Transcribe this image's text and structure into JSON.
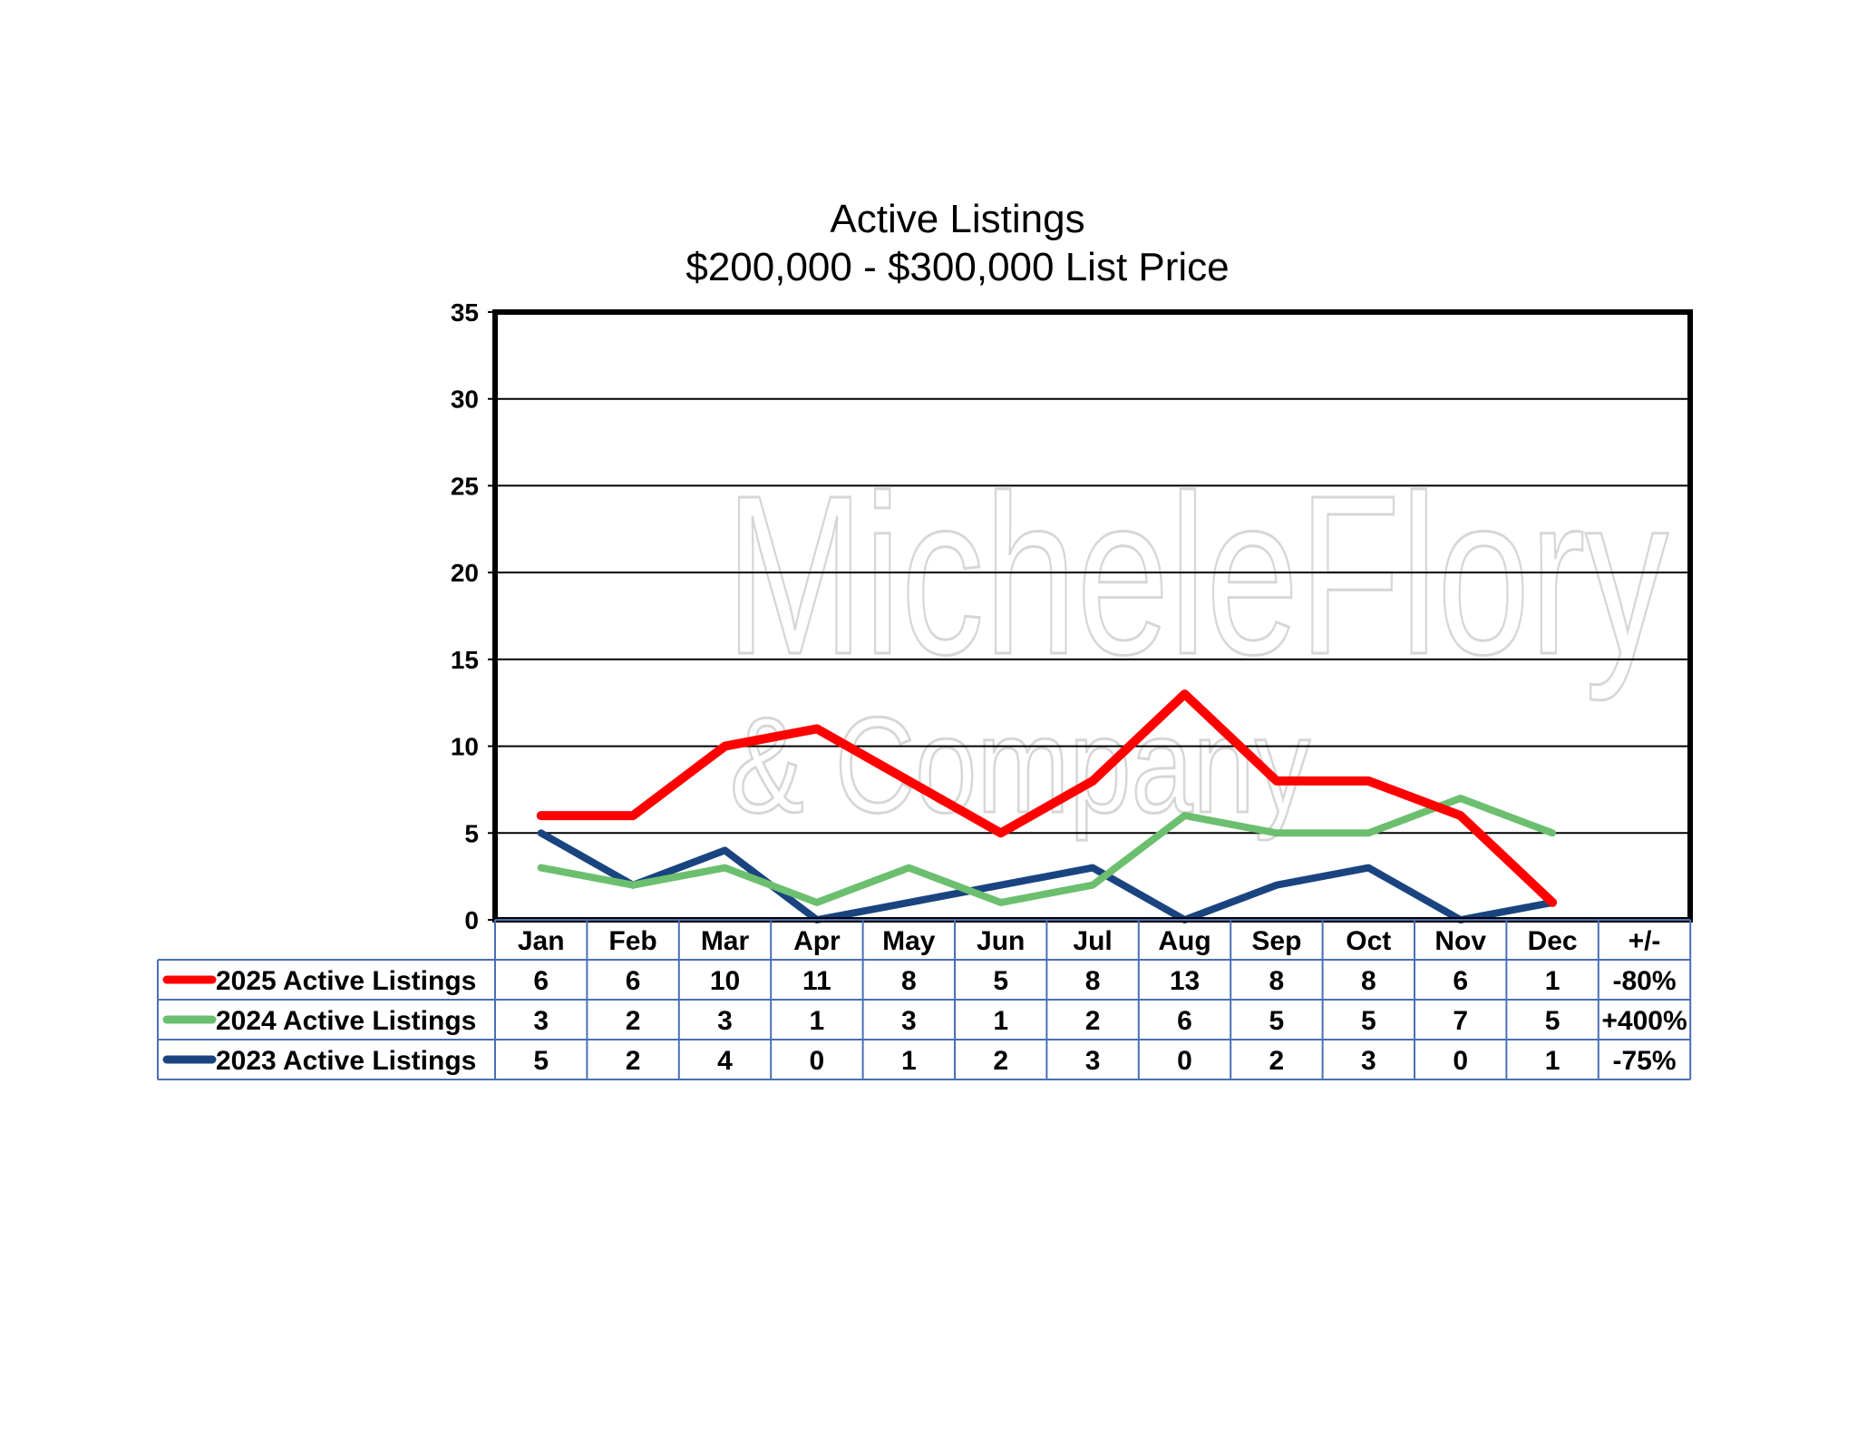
{
  "watermark": {
    "line1": "MicheleFlory",
    "line2": "& Company"
  },
  "chart_data": {
    "type": "line",
    "title": "Active Listings",
    "subtitle": "$200,000 - $300,000 List Price",
    "xlabel": "",
    "ylabel": "",
    "ylim": [
      0,
      35
    ],
    "yticks": [
      0,
      5,
      10,
      15,
      20,
      25,
      30,
      35
    ],
    "grid": true,
    "categories": [
      "Jan",
      "Feb",
      "Mar",
      "Apr",
      "May",
      "Jun",
      "Jul",
      "Aug",
      "Sep",
      "Oct",
      "Nov",
      "Dec"
    ],
    "change_header": "+/-",
    "series": [
      {
        "name": "2025 Active Listings",
        "color": "#ff0000",
        "values": [
          6,
          6,
          10,
          11,
          8,
          5,
          8,
          13,
          8,
          8,
          6,
          1
        ],
        "change": "-80%"
      },
      {
        "name": "2024 Active Listings",
        "color": "#6cbf6f",
        "values": [
          3,
          2,
          3,
          1,
          3,
          1,
          2,
          6,
          5,
          5,
          7,
          5
        ],
        "change": "+400%"
      },
      {
        "name": "2023 Active Listings",
        "color": "#1a4480",
        "values": [
          5,
          2,
          4,
          0,
          1,
          2,
          3,
          0,
          2,
          3,
          0,
          1
        ],
        "change": "-75%"
      }
    ],
    "table_border_color": "#4a6fb5"
  }
}
